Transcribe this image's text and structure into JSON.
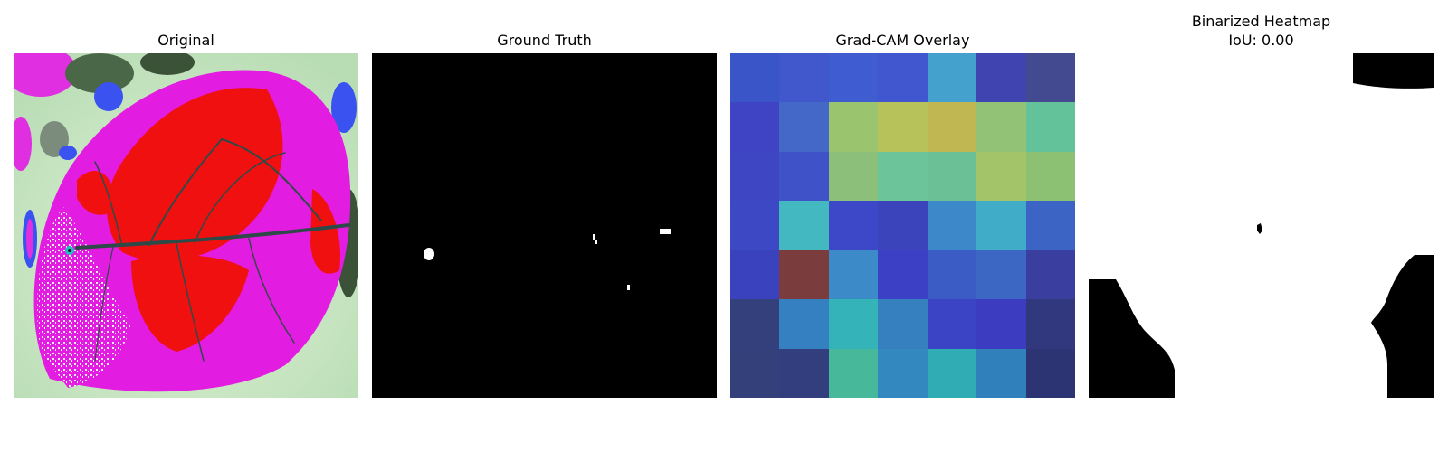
{
  "panels": [
    {
      "title": "Original"
    },
    {
      "title": "Ground Truth"
    },
    {
      "title": "Grad-CAM Overlay"
    },
    {
      "title": "Binarized Heatmap",
      "subtitle": "IoU: 0.00"
    }
  ],
  "gradcam_grid": [
    [
      "#3a55c8",
      "#4157cc",
      "#3f5cd0",
      "#4157cf",
      "#44a0cc",
      "#3f44b0",
      "#434a90"
    ],
    [
      "#3e44c4",
      "#4468c8",
      "#9ac46e",
      "#b8c25a",
      "#c0b652",
      "#92c276",
      "#64c29a"
    ],
    [
      "#3e46c4",
      "#3f52c8",
      "#8cc07a",
      "#6cc49a",
      "#6cc096",
      "#a4c46a",
      "#8cc072"
    ],
    [
      "#3c48c4",
      "#44b8c0",
      "#3c48c8",
      "#3c44bc",
      "#3c88c8",
      "#40acc8",
      "#3c64c4"
    ],
    [
      "#3a42be",
      "#7a3c3c",
      "#3c8ac8",
      "#3c40c4",
      "#3a5cc4",
      "#3c68c4",
      "#3a3e9e"
    ],
    [
      "#34407c",
      "#3480c0",
      "#34b4b8",
      "#3680c0",
      "#3a44c4",
      "#3c3cc0",
      "#32387e"
    ],
    [
      "#33407a",
      "#323e7e",
      "#48b89a",
      "#3488c0",
      "#30acb4",
      "#3080bc",
      "#2c3474"
    ]
  ]
}
